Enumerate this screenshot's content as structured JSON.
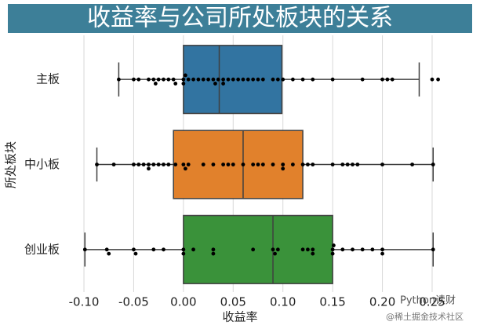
{
  "chart_data": {
    "type": "box",
    "title": "收益率与公司所处板块的关系",
    "x_label": "收益率",
    "y_label": "所处板块",
    "categories": [
      "主板",
      "中小板",
      "创业板"
    ],
    "xlim": [
      -0.115,
      0.265
    ],
    "xticks": [
      {
        "value": -0.1,
        "label": "-0.10"
      },
      -0.05,
      {
        "value": 0,
        "label": "0.00"
      },
      0.05,
      {
        "value": 0.1,
        "label": "0.10"
      },
      0.15,
      {
        "value": 0.2,
        "label": "0.20"
      },
      0.25
    ],
    "grid": true,
    "point_color": "#000000",
    "series": [
      {
        "color": "#3274a1",
        "whisker_low": -0.065,
        "q1": 0.0,
        "median": 0.036,
        "q3": 0.099,
        "whisker_high": 0.237,
        "points": [
          -0.065,
          -0.05,
          -0.045,
          -0.035,
          -0.03,
          -0.028,
          -0.025,
          -0.02,
          -0.015,
          -0.01,
          -0.008,
          0.0,
          0.0,
          0.002,
          0.005,
          0.01,
          0.015,
          0.02,
          0.025,
          0.03,
          0.032,
          0.035,
          0.04,
          0.04,
          0.045,
          0.05,
          0.055,
          0.06,
          0.065,
          0.07,
          0.075,
          0.08,
          0.09,
          0.095,
          0.1,
          0.11,
          0.12,
          0.13,
          0.15,
          0.18,
          0.2,
          0.205,
          0.21,
          0.25,
          0.256
        ]
      },
      {
        "color": "#e1812c",
        "whisker_low": -0.087,
        "q1": -0.01,
        "median": 0.06,
        "q3": 0.12,
        "whisker_high": 0.251,
        "points": [
          -0.087,
          -0.07,
          -0.05,
          -0.045,
          -0.04,
          -0.035,
          -0.035,
          -0.03,
          -0.025,
          -0.02,
          -0.015,
          -0.008,
          0.0,
          0.002,
          0.005,
          0.02,
          0.03,
          0.04,
          0.045,
          0.05,
          0.06,
          0.07,
          0.075,
          0.08,
          0.09,
          0.1,
          0.1,
          0.11,
          0.12,
          0.125,
          0.13,
          0.15,
          0.16,
          0.165,
          0.17,
          0.175,
          0.2,
          0.23,
          0.251
        ]
      },
      {
        "color": "#3a923a",
        "whisker_low": -0.099,
        "q1": 0.0,
        "median": 0.09,
        "q3": 0.15,
        "whisker_high": 0.251,
        "points": [
          -0.099,
          -0.077,
          -0.075,
          -0.05,
          -0.048,
          -0.03,
          -0.02,
          0.0,
          0.0,
          0.01,
          0.03,
          0.03,
          0.07,
          0.09,
          0.092,
          0.095,
          0.12,
          0.125,
          0.13,
          0.13,
          0.15,
          0.15,
          0.151,
          0.16,
          0.17,
          0.18,
          0.19,
          0.2,
          0.2,
          0.251
        ]
      }
    ],
    "watermark": [
      "Python读财",
      "@稀土掘金技术社区"
    ]
  }
}
